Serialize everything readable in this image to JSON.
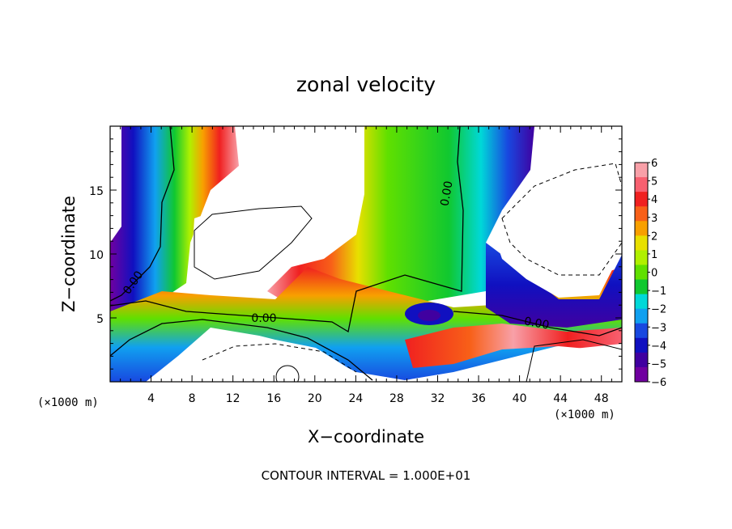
{
  "chart_data": {
    "type": "heatmap",
    "title": "zonal velocity",
    "xlabel": "X−coordinate",
    "ylabel": "Z−coordinate",
    "x_unit_left": "(×1000 m)",
    "x_unit_right": "(×1000 m)",
    "footer": "CONTOUR INTERVAL = 1.000E+01",
    "xlim": [
      0,
      50
    ],
    "ylim": [
      0,
      20
    ],
    "x_ticks": [
      4,
      8,
      12,
      16,
      20,
      24,
      28,
      32,
      36,
      40,
      44,
      48
    ],
    "y_ticks": [
      5,
      10,
      15
    ],
    "contour_label": "0.00",
    "colorbar": {
      "labels": [
        "6",
        "5",
        "4",
        "3",
        "2",
        "1",
        "0",
        "−1",
        "−2",
        "−3",
        "−4",
        "−5",
        "−6"
      ],
      "colors": [
        "#f8a0a8",
        "#f86070",
        "#f02020",
        "#f86018",
        "#f8a000",
        "#e8e000",
        "#b0f000",
        "#60e000",
        "#10c830",
        "#00d8d8",
        "#10a0f0",
        "#1848e0",
        "#1010c0",
        "#4000a0",
        "#7000a0"
      ]
    }
  }
}
